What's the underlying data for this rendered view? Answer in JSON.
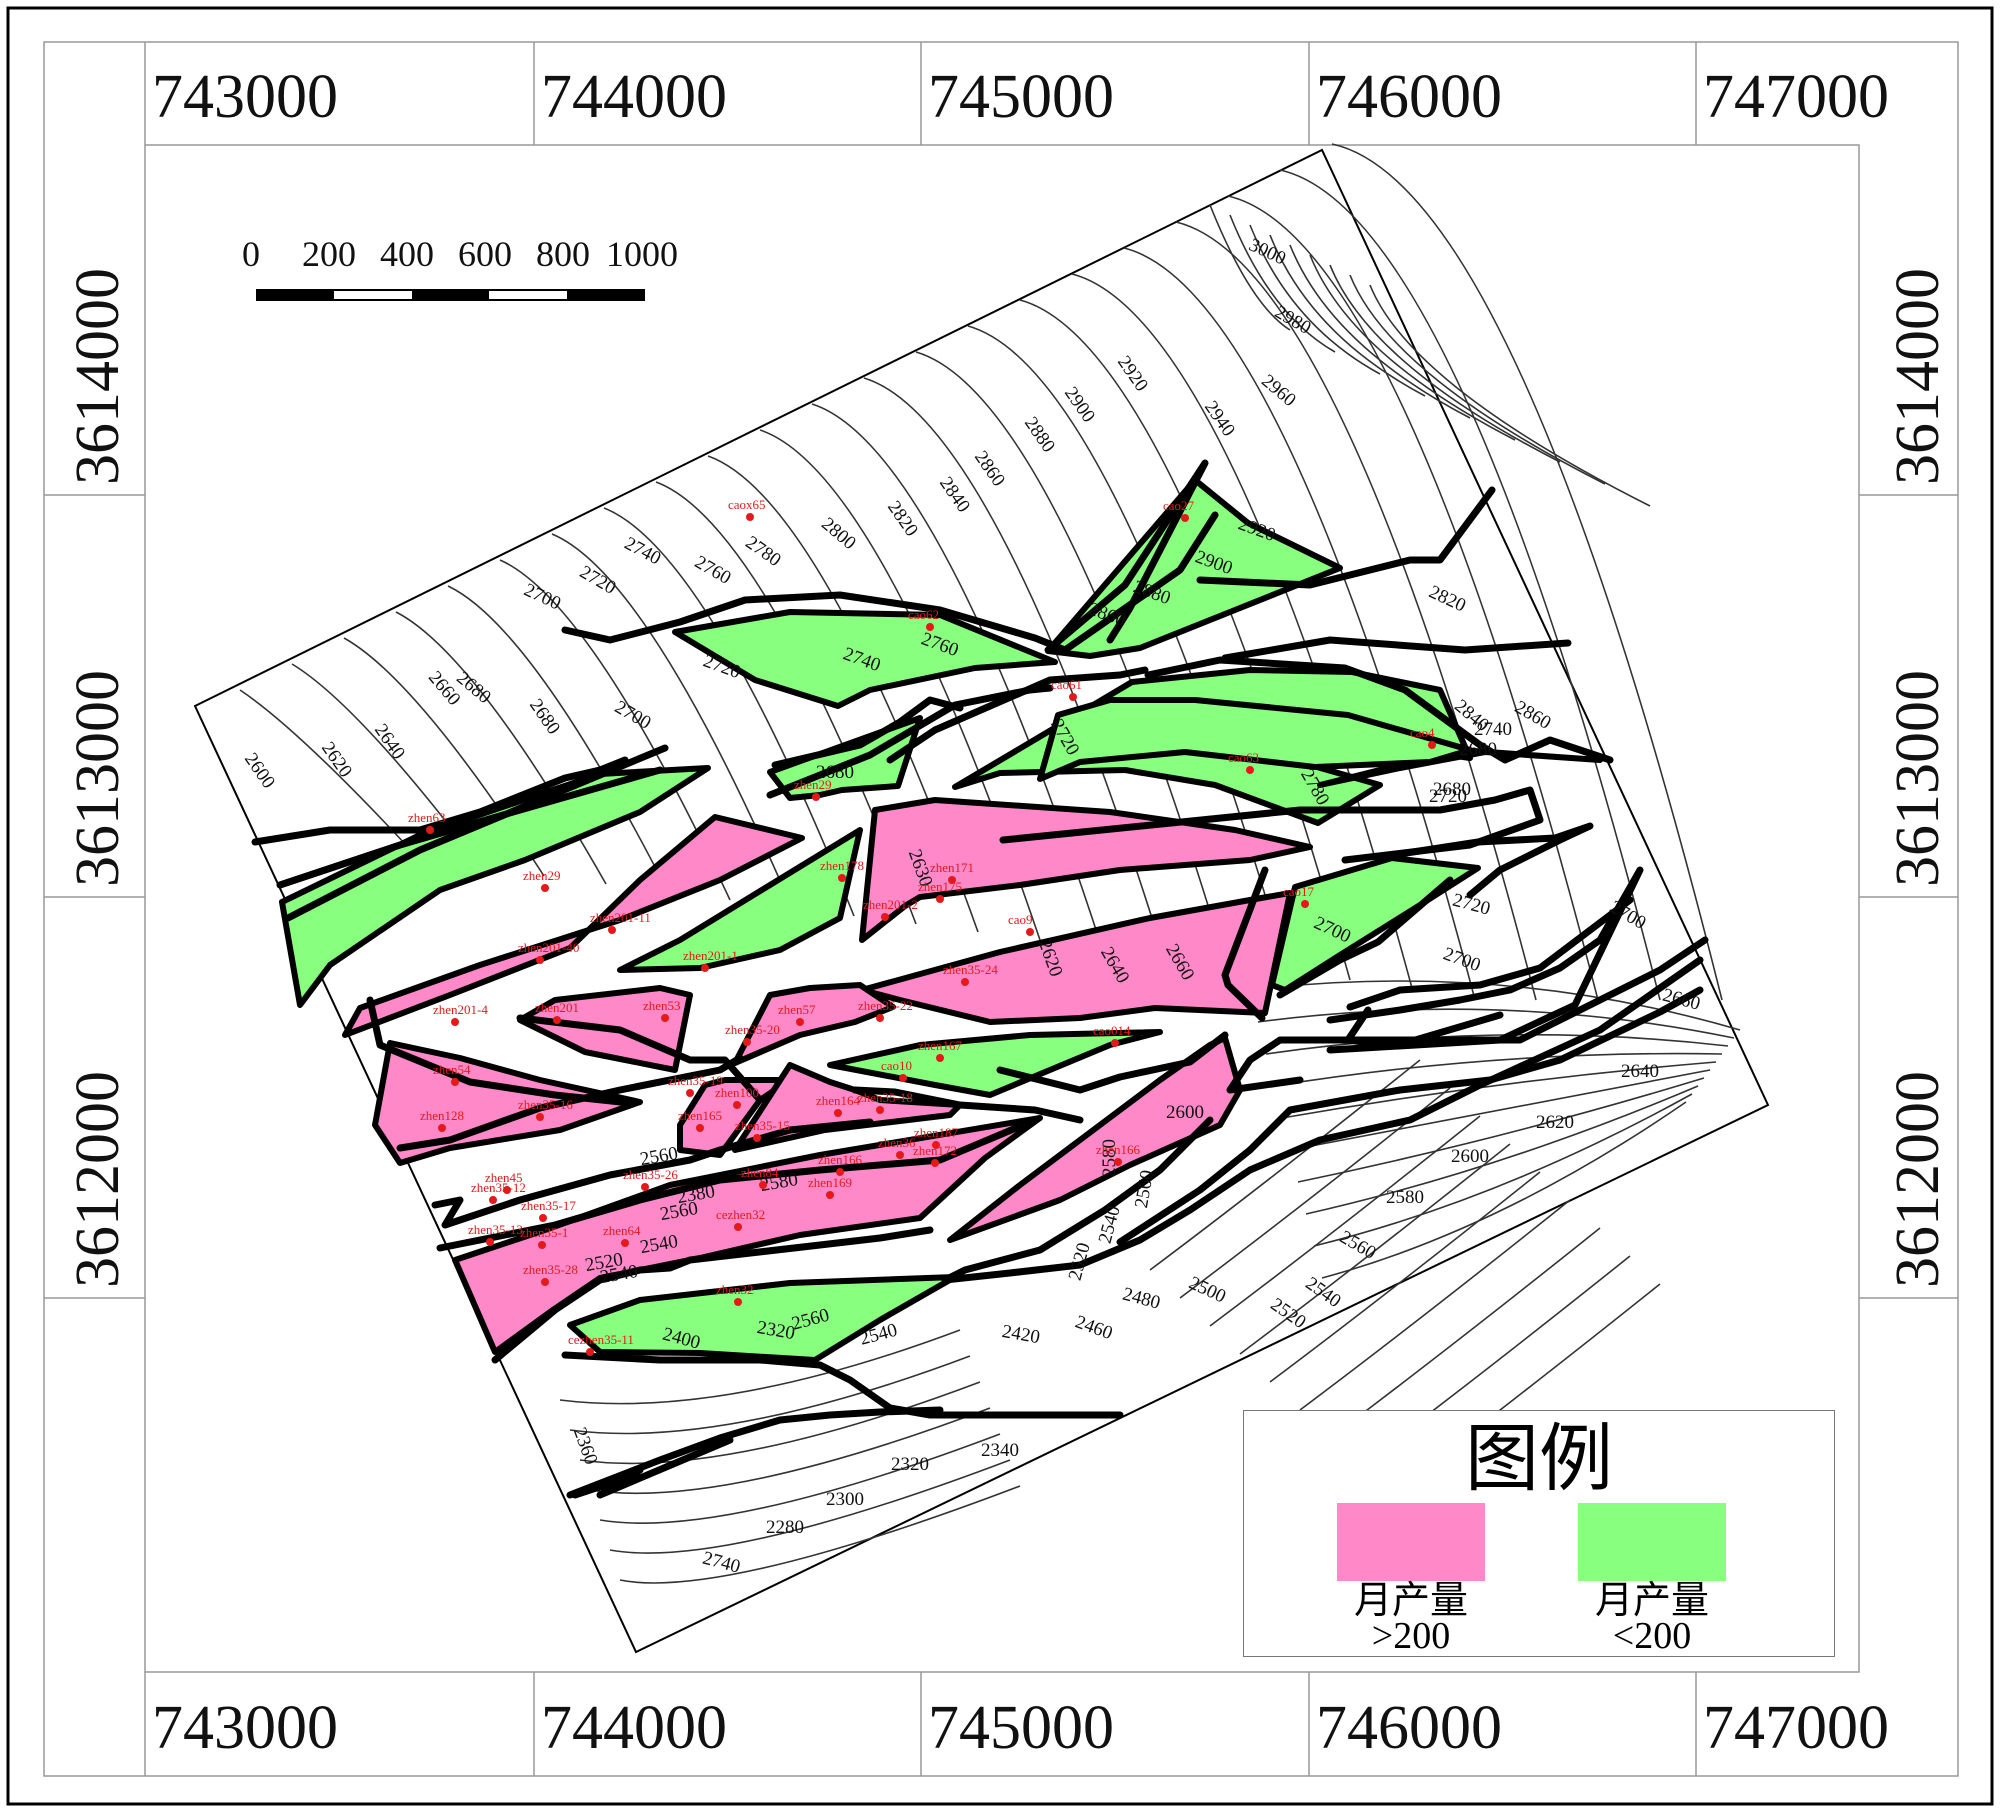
{
  "map": {
    "x_ticks_top": [
      "743000",
      "744000",
      "745000",
      "746000",
      "747000"
    ],
    "x_ticks_bottom": [
      "743000",
      "744000",
      "745000",
      "746000",
      "747000"
    ],
    "y_ticks_left": [
      "3614000",
      "3613000",
      "3612000"
    ],
    "y_ticks_right": [
      "3614000",
      "3613000",
      "3612000"
    ],
    "scale_bar": [
      "0",
      "200",
      "400",
      "600",
      "800",
      "1000"
    ],
    "contour_labels": [
      "3000",
      "2980",
      "2960",
      "2940",
      "2920",
      "2900",
      "2880",
      "2860",
      "2840",
      "2820",
      "2800",
      "2780",
      "2760",
      "2740",
      "2720",
      "2700",
      "2680",
      "2660",
      "2640",
      "2620",
      "2600",
      "2920",
      "2900",
      "2880",
      "2860",
      "2760",
      "2740",
      "2720",
      "2700",
      "2680",
      "2820",
      "2840",
      "2860",
      "2720",
      "2780",
      "2680",
      "2630",
      "2620",
      "2640",
      "2660",
      "2700",
      "2700",
      "2720",
      "2700",
      "2660",
      "2640",
      "2620",
      "2600",
      "2580",
      "2560",
      "2540",
      "2520",
      "2500",
      "2480",
      "2460",
      "2420",
      "2600",
      "2580",
      "2560",
      "2540",
      "2520",
      "2540",
      "2560",
      "2580",
      "2560",
      "2540",
      "2520",
      "2540",
      "2560",
      "2380",
      "2400",
      "2320",
      "2360",
      "2340",
      "2320",
      "2300",
      "2280",
      "2740",
      "2740",
      "2720",
      "2680",
      "2680"
    ],
    "wells": [
      "caox65",
      "cao27",
      "cao62",
      "cao61",
      "cao63",
      "cao4",
      "zhen29",
      "zhen63",
      "zhen29",
      "zhen178",
      "zhen171",
      "zhen175",
      "zhen201-11",
      "zhen201-2",
      "zhen201-1",
      "zhen201-40",
      "cao17",
      "cao9",
      "zhen35-24",
      "zhen201-4",
      "zhen201",
      "zhen53",
      "zhen57",
      "zhen35-20",
      "zhen35-22",
      "cao014",
      "zhen167",
      "cao10",
      "zhen54",
      "zhen35-19",
      "zhen100",
      "zhen35-16",
      "zhen35-18",
      "zhen164",
      "zhen165",
      "zhen35-15",
      "zhen128",
      "zhen36",
      "zhen187",
      "zhen172",
      "zhen166",
      "zhen45",
      "zhen35-26",
      "zhen35-12",
      "zhen84",
      "zhen166",
      "zhen169",
      "zhen35-17",
      "zhen35-1",
      "zhen64",
      "cezhen32",
      "zhen35-13",
      "zhen35-28",
      "zhen32",
      "cezhen35-11"
    ]
  },
  "legend": {
    "title": "图例",
    "items": [
      {
        "label": "月产量",
        "range": ">200",
        "color": "#ff88c8"
      },
      {
        "label": "月产量",
        "range": "<200",
        "color": "#88ff7e"
      }
    ]
  }
}
